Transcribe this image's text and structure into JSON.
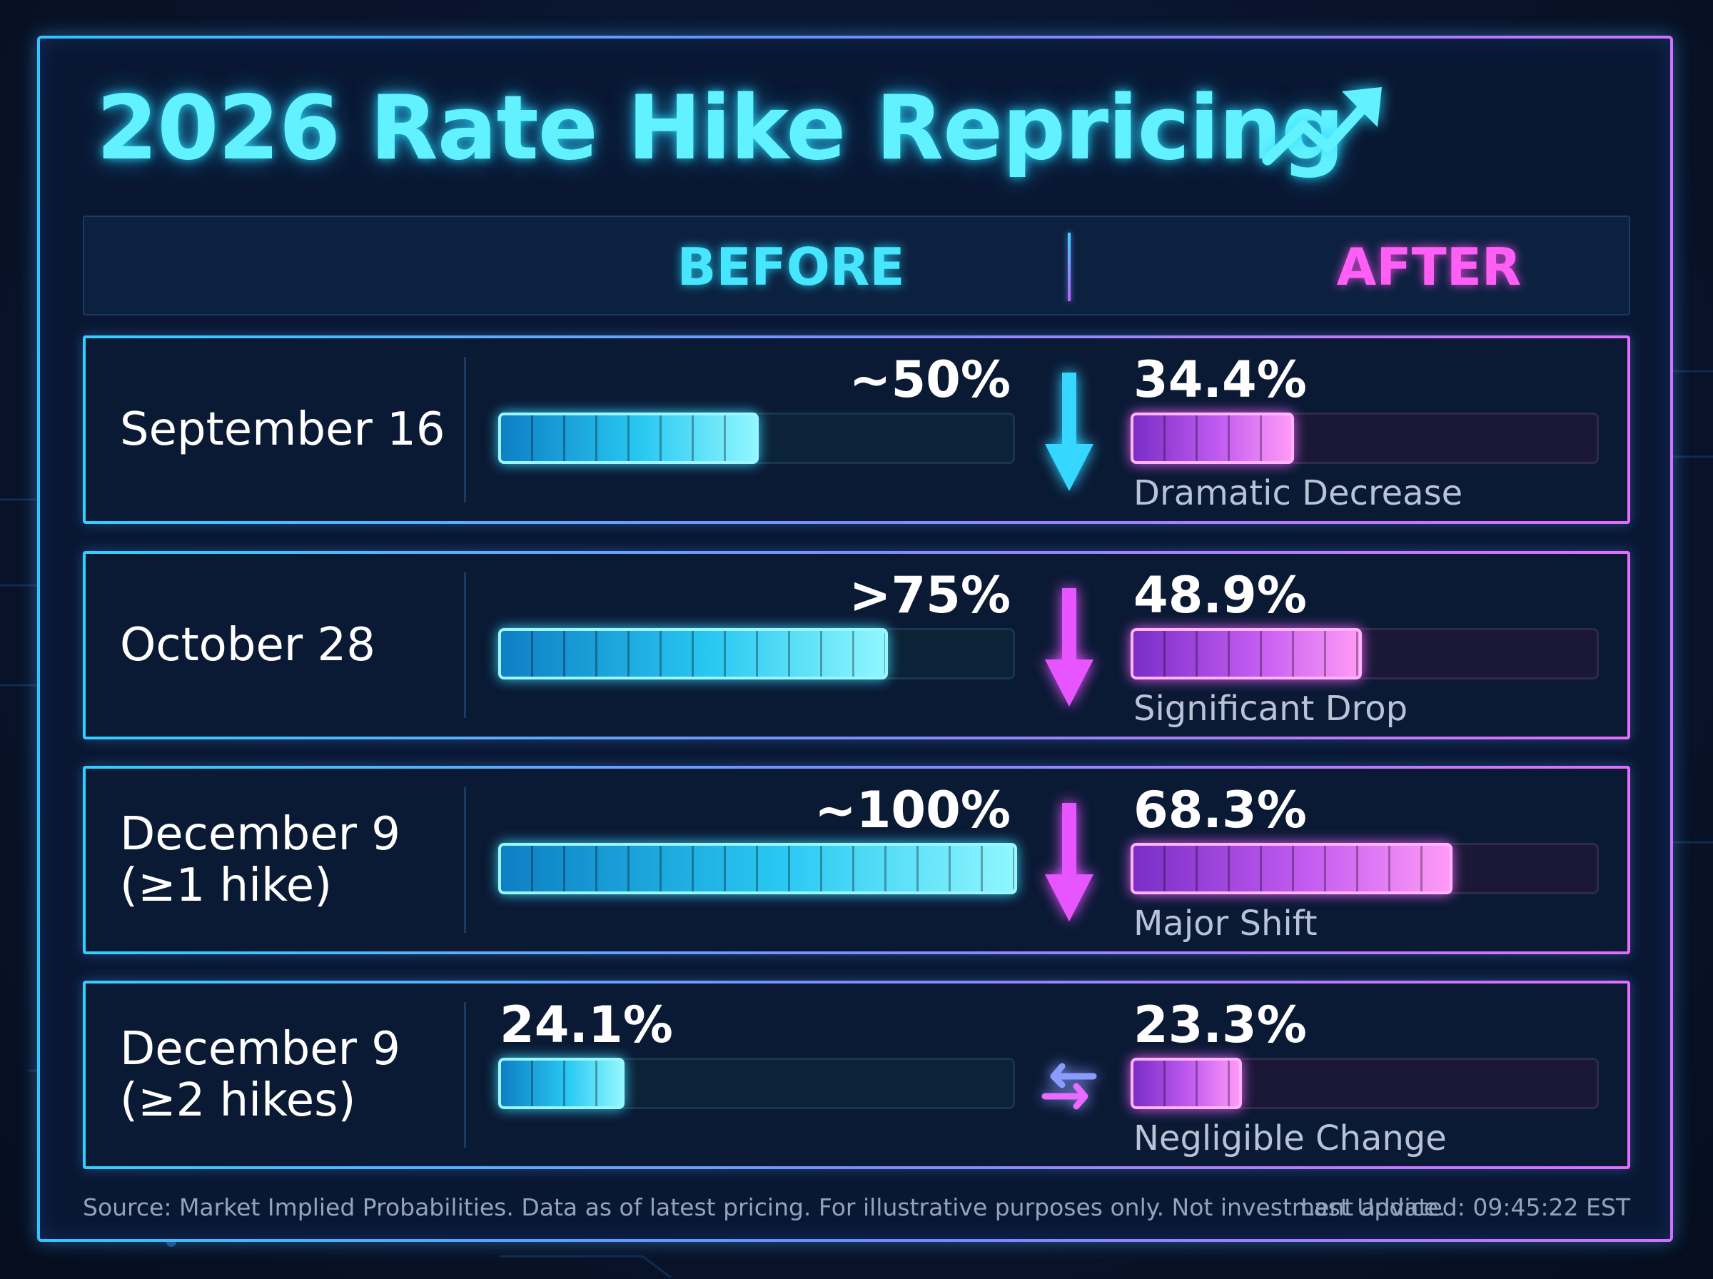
{
  "title": "2026 Rate Hike Repricing",
  "columns": {
    "before": "BEFORE",
    "after": "AFTER"
  },
  "colors": {
    "before": "#47e6ff",
    "after": "#ff5ff5"
  },
  "chart_data": {
    "type": "bar",
    "categories": [
      "September 16",
      "October 28",
      "December 9 (≥1 hike)",
      "December 9 (≥2 hikes)"
    ],
    "series": [
      {
        "name": "BEFORE",
        "values": [
          50,
          75,
          100,
          24.1
        ],
        "labels": [
          "~50%",
          ">75%",
          "~100%",
          "24.1%"
        ]
      },
      {
        "name": "AFTER",
        "values": [
          34.4,
          48.9,
          68.3,
          23.3
        ],
        "labels": [
          "34.4%",
          "48.9%",
          "68.3%",
          "23.3%"
        ]
      }
    ],
    "ylim": [
      0,
      100
    ]
  },
  "rows": [
    {
      "label_lines": [
        "September 16"
      ],
      "before_label": "~50%",
      "before_value": 50,
      "after_label": "34.4%",
      "after_value": 34.4,
      "change": "Dramatic Decrease",
      "icon": "arrow-down-icon",
      "icon_color": "#35d6ff"
    },
    {
      "label_lines": [
        "October 28"
      ],
      "before_label": ">75%",
      "before_value": 75,
      "after_label": "48.9%",
      "after_value": 48.9,
      "change": "Significant Drop",
      "icon": "arrow-down-icon",
      "icon_color": "#e655ff"
    },
    {
      "label_lines": [
        "December 9",
        "(≥1 hike)"
      ],
      "before_label": "~100%",
      "before_value": 100,
      "after_label": "68.3%",
      "after_value": 68.3,
      "change": "Major Shift",
      "icon": "arrow-down-icon",
      "icon_color": "#e655ff"
    },
    {
      "label_lines": [
        "December 9",
        "(≥2 hikes)"
      ],
      "before_label": "24.1%",
      "before_value": 24.1,
      "after_label": "23.3%",
      "after_value": 23.3,
      "change": "Negligible Change",
      "icon": "swap-arrows-icon",
      "icon_color": "#8a9cff"
    }
  ],
  "footer": {
    "source": "Source: Market Implied Probabilities. Data as of latest pricing. For illustrative purposes only. Not investment advice.",
    "updated": "Last Updated: 09:45:22 EST"
  }
}
